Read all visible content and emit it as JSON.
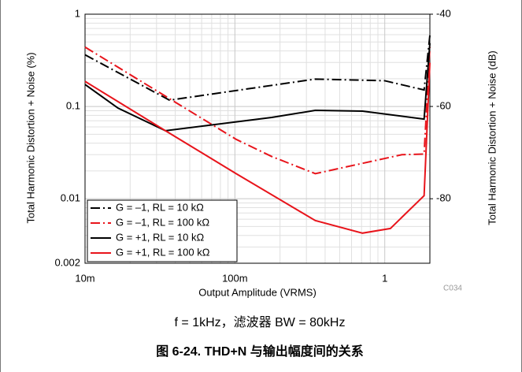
{
  "chart_data": {
    "type": "line",
    "x_label": "Output Amplitude (VRMS)",
    "y_label": "Total Harmonic Distortion + Noise (%)",
    "y2_label": "Total Harmonic Distortion + Noise (dB)",
    "code": "C034",
    "subtitle": "f = 1kHz，滤波器 BW = 80kHz",
    "caption": "图 6-24. THD+N 与输出幅度间的关系",
    "x_log": true,
    "y_log": true,
    "grid": true,
    "legend": "lower-left",
    "xlim": [
      0.01,
      2
    ],
    "xticks": [
      {
        "value": 0.01,
        "label": "10m"
      },
      {
        "value": 0.1,
        "label": "100m"
      },
      1
    ],
    "ylim": [
      0.002,
      1
    ],
    "yticks": [
      0.002,
      0.01,
      0.1,
      1
    ],
    "y2lim": [
      -93.98,
      -40
    ],
    "y2ticks": [
      -80,
      -60,
      -40
    ],
    "series": [
      {
        "name": "G = –1, RL = 10 kΩ",
        "color": "#000000",
        "style": "dashdot",
        "x": [
          0.01,
          0.0366,
          0.344,
          1,
          1.83,
          2
        ],
        "values": [
          0.363,
          0.117,
          0.198,
          0.19,
          0.151,
          0.59
        ]
      },
      {
        "name": "G = –1, RL = 100 kΩ",
        "color": "#e8141b",
        "style": "dashdot",
        "x": [
          0.01,
          0.102,
          0.176,
          0.344,
          1.3,
          1.83,
          2
        ],
        "values": [
          0.44,
          0.044,
          0.0287,
          0.0187,
          0.03,
          0.0305,
          0.44
        ]
      },
      {
        "name": "G = +1, RL = 10 kΩ",
        "color": "#000000",
        "style": "solid",
        "x": [
          0.01,
          0.0166,
          0.0344,
          0.176,
          0.344,
          0.71,
          1.83,
          2
        ],
        "values": [
          0.173,
          0.096,
          0.0546,
          0.076,
          0.0907,
          0.089,
          0.073,
          0.485
        ]
      },
      {
        "name": "G = +1, RL = 100 kΩ",
        "color": "#e8141b",
        "style": "solid",
        "x": [
          0.01,
          0.0344,
          0.102,
          0.344,
          0.71,
          1.09,
          1.83,
          2
        ],
        "values": [
          0.187,
          0.0546,
          0.0187,
          0.0058,
          0.00424,
          0.00476,
          0.0108,
          0.298
        ]
      }
    ]
  }
}
